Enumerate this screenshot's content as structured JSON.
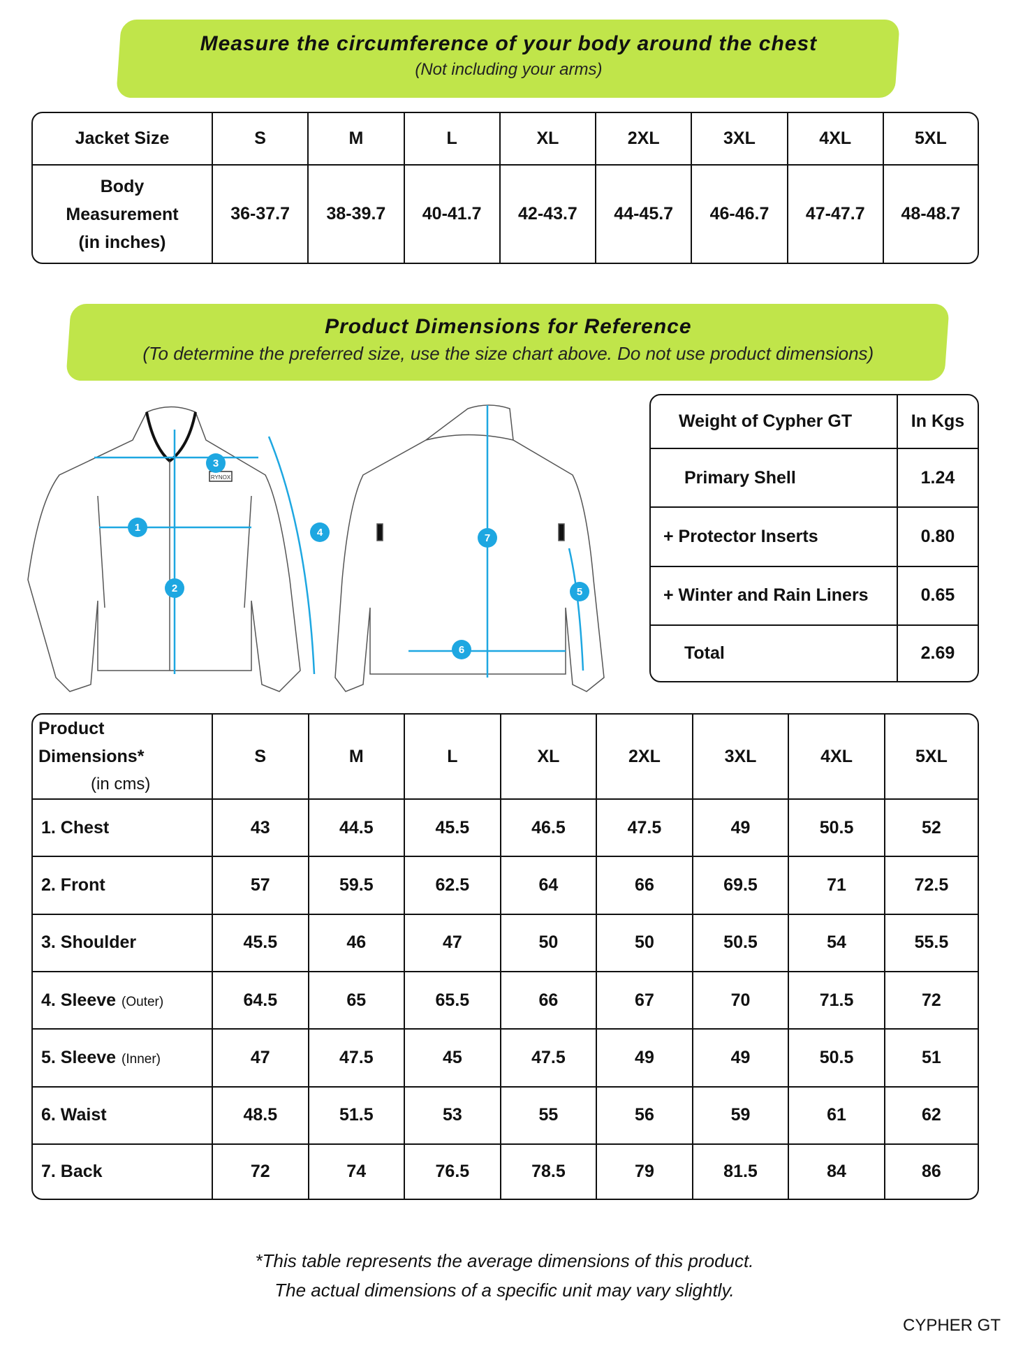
{
  "banner1": {
    "title": "Measure the circumference of your body around the chest",
    "subtitle": "(Not including your arms)"
  },
  "size_table": {
    "header": [
      "Jacket Size",
      "S",
      "M",
      "L",
      "XL",
      "2XL",
      "3XL",
      "4XL",
      "5XL"
    ],
    "row_label": [
      "Body",
      "Measurement",
      "(in inches)"
    ],
    "values": [
      "36-37.7",
      "38-39.7",
      "40-41.7",
      "42-43.7",
      "44-45.7",
      "46-46.7",
      "47-47.7",
      "48-48.7"
    ]
  },
  "banner2": {
    "title": "Product Dimensions for Reference",
    "subtitle": "(To determine the preferred size, use the size chart above. Do not use product dimensions)"
  },
  "diagram": {
    "brand": "RYNOX",
    "markers": [
      "1",
      "2",
      "3",
      "4",
      "5",
      "6",
      "7"
    ],
    "accent": "#1ea7e1"
  },
  "weight_table": {
    "header": [
      "Weight of Cypher GT",
      "In Kgs"
    ],
    "rows": [
      [
        "Primary Shell",
        "1.24"
      ],
      [
        "+ Protector Inserts",
        "0.80"
      ],
      [
        "+ Winter and Rain Liners",
        "0.65"
      ],
      [
        "Total",
        "2.69"
      ]
    ]
  },
  "dims_table": {
    "header_label": "Product Dimensions*",
    "header_unit": "(in cms)",
    "sizes": [
      "S",
      "M",
      "L",
      "XL",
      "2XL",
      "3XL",
      "4XL",
      "5XL"
    ],
    "rows": [
      {
        "label": "1. Chest",
        "note": "",
        "values": [
          "43",
          "44.5",
          "45.5",
          "46.5",
          "47.5",
          "49",
          "50.5",
          "52"
        ]
      },
      {
        "label": "2. Front",
        "note": "",
        "values": [
          "57",
          "59.5",
          "62.5",
          "64",
          "66",
          "69.5",
          "71",
          "72.5"
        ]
      },
      {
        "label": "3. Shoulder",
        "note": "",
        "values": [
          "45.5",
          "46",
          "47",
          "50",
          "50",
          "50.5",
          "54",
          "55.5"
        ]
      },
      {
        "label": "4. Sleeve",
        "note": "(Outer)",
        "values": [
          "64.5",
          "65",
          "65.5",
          "66",
          "67",
          "70",
          "71.5",
          "72"
        ]
      },
      {
        "label": "5. Sleeve",
        "note": "(Inner)",
        "values": [
          "47",
          "47.5",
          "45",
          "47.5",
          "49",
          "49",
          "50.5",
          "51"
        ]
      },
      {
        "label": "6. Waist",
        "note": "",
        "values": [
          "48.5",
          "51.5",
          "53",
          "55",
          "56",
          "59",
          "61",
          "62"
        ]
      },
      {
        "label": "7. Back",
        "note": "",
        "values": [
          "72",
          "74",
          "76.5",
          "78.5",
          "79",
          "81.5",
          "84",
          "86"
        ]
      }
    ]
  },
  "footnote": [
    "*This table represents the average dimensions of this product.",
    "The actual dimensions of a specific unit may vary slightly."
  ],
  "product_name": "CYPHER GT"
}
